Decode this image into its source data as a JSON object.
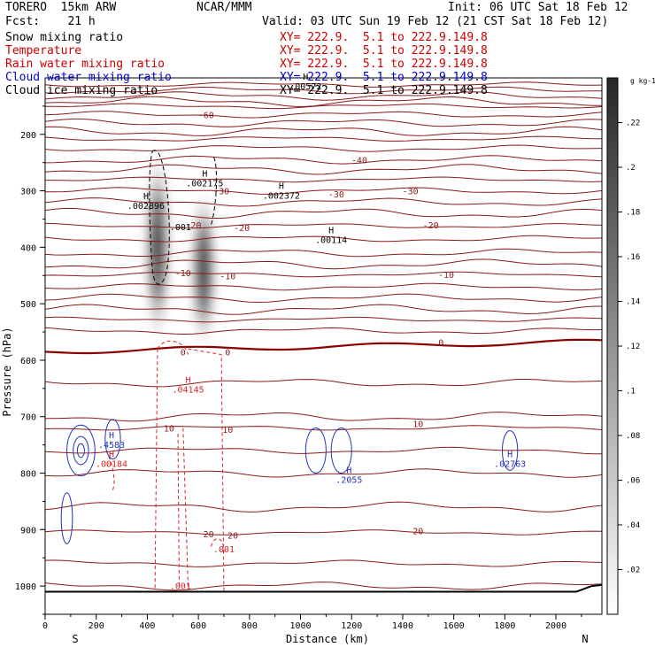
{
  "header": {
    "model": "TORERO  15km ARW",
    "center": "NCAR/MMM",
    "init": "Init: 06 UTC Sat 18 Feb 12",
    "fcst": "Fcst:    21 h",
    "valid": "Valid: 03 UTC Sun 19 Feb 12 (21 CST Sat 18 Feb 12)"
  },
  "fields": [
    {
      "name": "Snow mixing ratio",
      "xy": "XY= 222.9.  5.1 to 222.9.149.8",
      "color": "#000000",
      "xy_color": "#cc0000"
    },
    {
      "name": "Temperature",
      "xy": "XY= 222.9.  5.1 to 222.9.149.8",
      "color": "#cc0000",
      "xy_color": "#cc0000"
    },
    {
      "name": "Rain water mixing ratio",
      "xy": "XY= 222.9.  5.1 to 222.9.149.8",
      "color": "#cc0000",
      "xy_color": "#cc0000"
    },
    {
      "name": "Cloud water mixing ratio",
      "xy": "XY= 222.9.  5.1 to 222.9.149.8",
      "color": "#0000cc",
      "xy_color": "#0000cc"
    },
    {
      "name": "Cloud ice mixing ratio",
      "xy": "XY= 222.9.  5.1 to 222.9.149.8",
      "color": "#000000",
      "xy_color": "#000000"
    }
  ],
  "colors": {
    "temperature": "#8b1a1a",
    "freezing": "#8b0000",
    "rain": "#dd2222",
    "cloud_water": "#2233bb",
    "cloud_ice": "#000000",
    "terrain": "#000000"
  },
  "chart_data": {
    "type": "heatmap",
    "xlabel": "Distance (km)",
    "ylabel": "Pressure (hPa)",
    "x_ticks": [
      0,
      200,
      400,
      600,
      800,
      1000,
      1200,
      1400,
      1600,
      1800,
      2000
    ],
    "y_ticks": [
      200,
      300,
      400,
      500,
      600,
      700,
      800,
      900,
      1000
    ],
    "xlim": [
      0,
      2180
    ],
    "ylim": [
      1050,
      100
    ],
    "left_end": "S",
    "right_end": "N",
    "colorbar": {
      "unit": "g kg-1",
      "ticks": [
        ".02",
        ".04",
        ".06",
        ".08",
        ".1",
        ".12",
        ".14",
        ".16",
        ".18",
        ".2",
        ".22"
      ],
      "range": [
        0,
        0.24
      ]
    },
    "snow_shading": [
      {
        "x": 440,
        "p_top": 220,
        "p_bottom": 580,
        "max": 0.24
      },
      {
        "x": 620,
        "p_top": 290,
        "p_bottom": 590,
        "max": 0.24
      }
    ],
    "temperature_contour_labels": [
      {
        "value": "-60",
        "x": 630,
        "p": 165
      },
      {
        "value": "-40",
        "x": 1230,
        "p": 245
      },
      {
        "value": "-30",
        "x": 690,
        "p": 300
      },
      {
        "value": "-30",
        "x": 1140,
        "p": 305
      },
      {
        "value": "-30",
        "x": 1430,
        "p": 300
      },
      {
        "value": "-20",
        "x": 580,
        "p": 360
      },
      {
        "value": "-20",
        "x": 770,
        "p": 365
      },
      {
        "value": "-20",
        "x": 1510,
        "p": 360
      },
      {
        "value": "-10",
        "x": 540,
        "p": 445
      },
      {
        "value": "-10",
        "x": 715,
        "p": 450
      },
      {
        "value": "-10",
        "x": 1570,
        "p": 448
      },
      {
        "value": "0",
        "x": 540,
        "p": 585
      },
      {
        "value": "0",
        "x": 715,
        "p": 585
      },
      {
        "value": "0",
        "x": 1550,
        "p": 568
      },
      {
        "value": "10",
        "x": 485,
        "p": 720
      },
      {
        "value": "10",
        "x": 715,
        "p": 722
      },
      {
        "value": "10",
        "x": 1460,
        "p": 712
      },
      {
        "value": "20",
        "x": 640,
        "p": 907
      },
      {
        "value": "20",
        "x": 735,
        "p": 910
      },
      {
        "value": "20",
        "x": 1460,
        "p": 902
      }
    ],
    "max_labels": [
      {
        "mark": "H",
        "value": ".002896",
        "x": 395,
        "p": 315,
        "color": "#000000"
      },
      {
        "mark": "H",
        "value": ".002175",
        "x": 625,
        "p": 275,
        "color": "#000000"
      },
      {
        "mark": "H",
        "value": ".002372",
        "x": 925,
        "p": 297,
        "color": "#000000"
      },
      {
        "mark": "H",
        "value": ".00114",
        "x": 1120,
        "p": 375,
        "color": "#000000"
      },
      {
        "mark": "H",
        "value": ".00572",
        "x": 1020,
        "p": 103,
        "color": "#000000"
      },
      {
        "mark": "H",
        "value": ".04145",
        "x": 560,
        "p": 640,
        "color": "#dd2222"
      },
      {
        "mark": "H",
        "value": ".4583",
        "x": 260,
        "p": 738,
        "color": "#2233bb"
      },
      {
        "mark": "H",
        "value": ".00184",
        "x": 260,
        "p": 772,
        "color": "#dd2222"
      },
      {
        "mark": "H",
        "value": ".2055",
        "x": 1190,
        "p": 800,
        "color": "#2233bb"
      },
      {
        "mark": "H",
        "value": ".02763",
        "x": 1820,
        "p": 772,
        "color": "#2233bb"
      }
    ],
    "small_labels": [
      {
        "value": ".001",
        "x": 530,
        "p": 370,
        "color": "#000000"
      },
      {
        "value": ".001",
        "x": 700,
        "p": 940,
        "color": "#dd2222"
      },
      {
        "value": ".001",
        "x": 530,
        "p": 1005,
        "color": "#dd2222"
      }
    ]
  }
}
